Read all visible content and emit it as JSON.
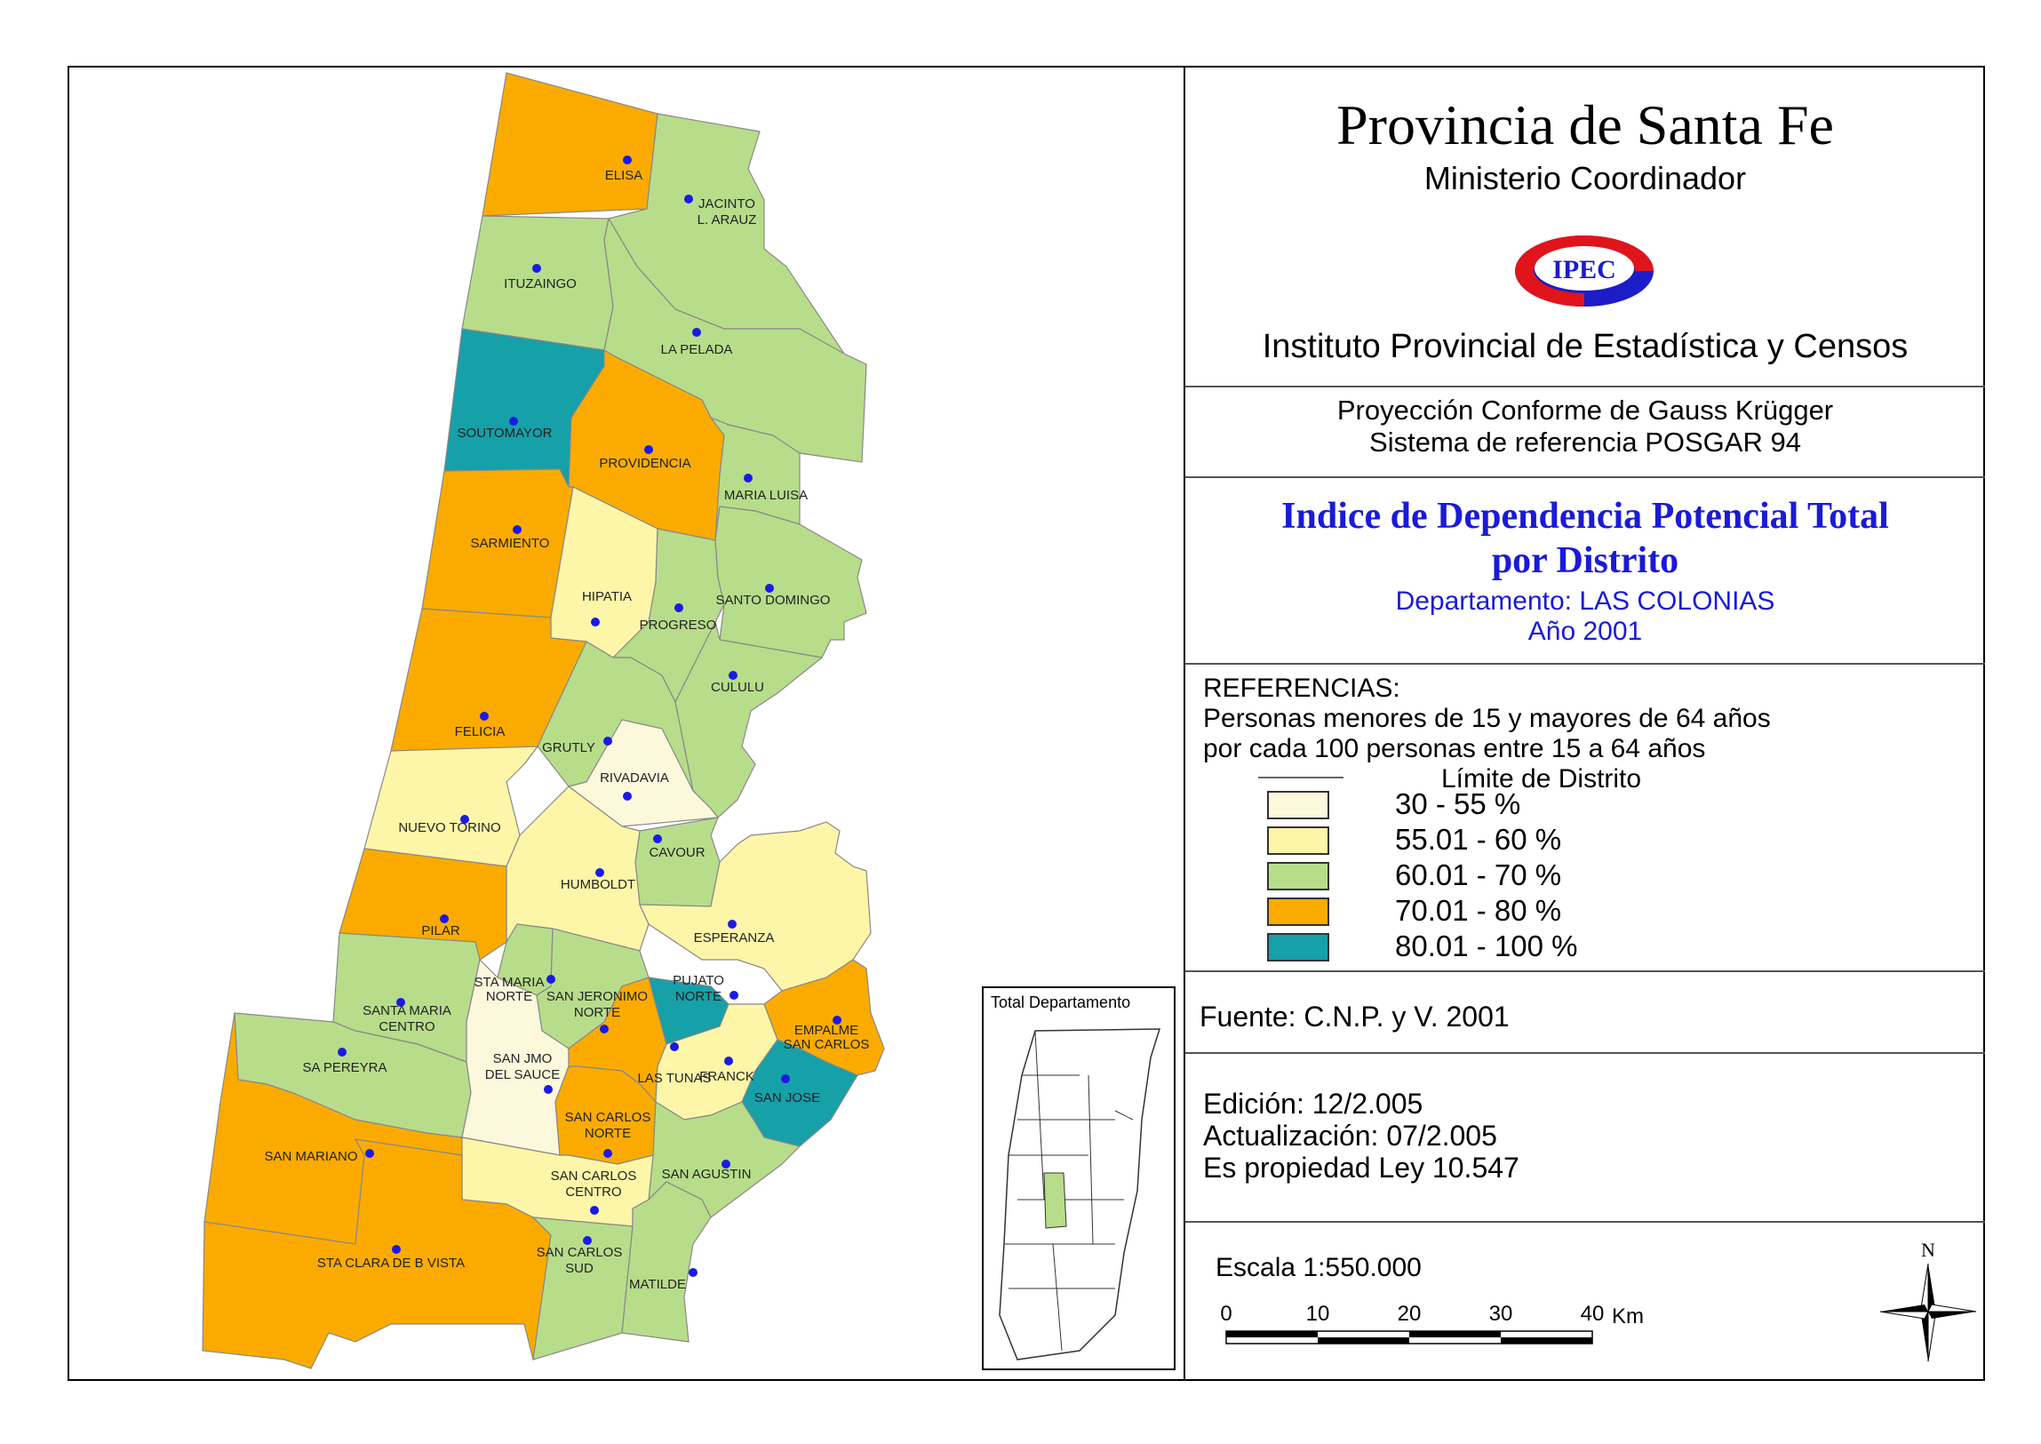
{
  "header": {
    "title": "Provincia de Santa Fe",
    "subtitle": "Ministerio Coordinador",
    "logo_text": "IPEC",
    "institute": "Instituto Provincial de Estadística y Censos"
  },
  "projection": {
    "line1": "Proyección Conforme de Gauss Krügger",
    "line2": "Sistema de referencia POSGAR 94"
  },
  "map_title": {
    "line1": "Indice de Dependencia Potencial Total",
    "line2": "por Distrito",
    "department": "Departamento:  LAS COLONIAS",
    "year": "Año 2001"
  },
  "legend": {
    "heading": "REFERENCIAS:",
    "desc1": "Personas menores de 15 y mayores de 64 años",
    "desc2": "por cada 100 personas entre 15 a 64 años",
    "boundary_label": "Límite de Distrito",
    "classes": [
      {
        "label": "30 - 55 %",
        "color": "#fbf8dc"
      },
      {
        "label": "55.01 - 60 %",
        "color": "#fdf6a8"
      },
      {
        "label": "60.01 - 70 %",
        "color": "#b7dd8b"
      },
      {
        "label": "70.01 - 80 %",
        "color": "#fbab00"
      },
      {
        "label": "80.01 - 100 %",
        "color": "#16a0a8"
      }
    ]
  },
  "source": "Fuente:  C.N.P. y V. 2001",
  "edition": {
    "edicion": "Edición:  12/2.005",
    "actualizacion": "Actualización:  07/2.005",
    "propiedad": "Es propiedad Ley 10.547"
  },
  "scale": {
    "label": "Escala 1:550.000",
    "ticks": [
      "0",
      "10",
      "20",
      "30",
      "40"
    ],
    "unit": "Km"
  },
  "north_label": "N",
  "inset_title": "Total Departamento",
  "districts": [
    {
      "name": "ELISA",
      "class": 3
    },
    {
      "name": "JACINTO",
      "name2": "L. ARAUZ",
      "class": 2
    },
    {
      "name": "ITUZAINGO",
      "class": 2
    },
    {
      "name": "LA PELADA",
      "class": 2
    },
    {
      "name": "SOUTOMAYOR",
      "class": 4
    },
    {
      "name": "PROVIDENCIA",
      "class": 3
    },
    {
      "name": "MARIA LUISA",
      "class": 2
    },
    {
      "name": "SARMIENTO",
      "class": 3
    },
    {
      "name": "HIPATIA",
      "class": 1
    },
    {
      "name": "PROGRESO",
      "class": 2
    },
    {
      "name": "SANTO DOMINGO",
      "class": 2
    },
    {
      "name": "CULULU",
      "class": 2
    },
    {
      "name": "FELICIA",
      "class": 3
    },
    {
      "name": "GRUTLY",
      "class": 2
    },
    {
      "name": "RIVADAVIA",
      "class": 0
    },
    {
      "name": "NUEVO TORINO",
      "class": 1
    },
    {
      "name": "CAVOUR",
      "class": 2
    },
    {
      "name": "HUMBOLDT",
      "class": 1
    },
    {
      "name": "ESPERANZA",
      "class": 1
    },
    {
      "name": "PILAR",
      "class": 3
    },
    {
      "name": "STA MARIA",
      "name2": "NORTE",
      "class": 2
    },
    {
      "name": "SAN JERONIMO",
      "name2": "NORTE",
      "class": 2
    },
    {
      "name": "PUJATO",
      "name2": "NORTE",
      "class": 4
    },
    {
      "name": "EMPALME",
      "name2": "SAN CARLOS",
      "class": 3
    },
    {
      "name": "SANTA MARIA",
      "name2": "CENTRO",
      "class": 2
    },
    {
      "name": "SA PEREYRA",
      "class": 2
    },
    {
      "name": "SAN JMO",
      "name2": "DEL SAUCE",
      "class": 0
    },
    {
      "name": "LAS TUNAS",
      "class": 3
    },
    {
      "name": "FRANCK",
      "class": 1
    },
    {
      "name": "SAN JOSE",
      "class": 4
    },
    {
      "name": "SAN CARLOS",
      "name2": "NORTE",
      "class": 3
    },
    {
      "name": "SAN MARIANO",
      "class": 3
    },
    {
      "name": "SAN AGUSTIN",
      "class": 2
    },
    {
      "name": "SAN CARLOS",
      "name2": "CENTRO",
      "class": 1
    },
    {
      "name": "STA CLARA DE B VISTA",
      "class": 3
    },
    {
      "name": "SAN CARLOS",
      "name2": "SUD",
      "class": 2
    },
    {
      "name": "MATILDE",
      "class": 2
    }
  ]
}
